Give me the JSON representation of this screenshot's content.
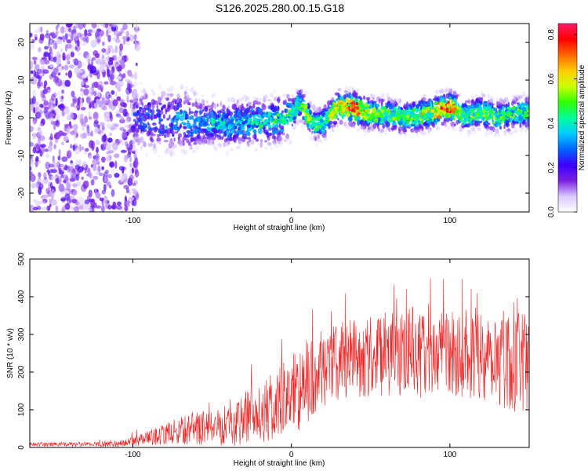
{
  "title": "S126.2025.280.00.15.G18",
  "chart_data": [
    {
      "type": "heatmap",
      "title": "S126.2025.280.00.15.G18",
      "xlabel": "Height of straight line (km)",
      "ylabel": "Frequency (Hz)",
      "xlim": [
        -165,
        150
      ],
      "ylim": [
        -25,
        25
      ],
      "xticks": [
        -100,
        0,
        100
      ],
      "yticks": [
        -20,
        -10,
        0,
        10,
        20
      ],
      "colorbar": {
        "label": "Normalized spectral amplitude",
        "range": [
          0.0,
          0.85
        ],
        "ticks": [
          0.0,
          0.2,
          0.4,
          0.6,
          0.8
        ],
        "colors": [
          "#ffffff",
          "#d9c7ff",
          "#7b1fe0",
          "#3a00ff",
          "#0066ff",
          "#00ccff",
          "#00ff99",
          "#33ff00",
          "#ccff00",
          "#ffcc00",
          "#ff6600",
          "#ff0000",
          "#ff1a66"
        ]
      },
      "ridge": {
        "x": [
          -100,
          -90,
          -80,
          -70,
          -60,
          -50,
          -40,
          -30,
          -20,
          -10,
          0,
          5,
          10,
          15,
          20,
          25,
          30,
          40,
          50,
          60,
          70,
          80,
          90,
          100,
          110,
          120,
          130,
          140,
          150
        ],
        "frequency": [
          0,
          -0.5,
          -1,
          -0.5,
          -1.5,
          -1,
          -2,
          -1,
          -1.5,
          -0.5,
          0.5,
          4,
          1,
          -2,
          -1.5,
          1,
          3,
          2.5,
          1,
          1,
          0,
          0.5,
          1.5,
          3,
          0.5,
          1.5,
          0,
          1,
          1.5
        ],
        "peak_amplitude": [
          0.25,
          0.3,
          0.3,
          0.35,
          0.35,
          0.4,
          0.4,
          0.4,
          0.45,
          0.45,
          0.5,
          0.5,
          0.6,
          0.5,
          0.5,
          0.6,
          0.7,
          0.85,
          0.6,
          0.55,
          0.55,
          0.6,
          0.65,
          0.85,
          0.5,
          0.6,
          0.55,
          0.5,
          0.5
        ]
      },
      "noise_region": {
        "x_from": -165,
        "x_to": -105,
        "frequency_from": -25,
        "frequency_to": 25,
        "amplitude": 0.1
      }
    },
    {
      "type": "line",
      "xlabel": "Height of straight line (km)",
      "ylabel": "SNR (10 * v/v)",
      "xlim": [
        -165,
        150
      ],
      "ylim": [
        0,
        500
      ],
      "xticks": [
        -100,
        0,
        100
      ],
      "yticks": [
        0,
        100,
        200,
        300,
        400,
        500
      ],
      "color": "#ee2222",
      "series": [
        {
          "name": "SNR",
          "x": [
            -165,
            -150,
            -130,
            -110,
            -100,
            -90,
            -80,
            -70,
            -60,
            -50,
            -40,
            -30,
            -20,
            -10,
            0,
            10,
            20,
            30,
            40,
            50,
            60,
            70,
            80,
            90,
            100,
            110,
            120,
            130,
            140,
            150
          ],
          "mean": [
            8,
            8,
            8,
            10,
            15,
            25,
            35,
            45,
            50,
            55,
            65,
            75,
            85,
            110,
            140,
            170,
            210,
            230,
            240,
            240,
            245,
            245,
            240,
            245,
            250,
            250,
            250,
            245,
            230,
            220
          ],
          "spread": [
            6,
            8,
            8,
            10,
            15,
            25,
            35,
            45,
            55,
            60,
            75,
            90,
            100,
            120,
            130,
            150,
            130,
            130,
            130,
            140,
            150,
            140,
            140,
            140,
            140,
            150,
            160,
            170,
            170,
            160
          ]
        }
      ]
    }
  ]
}
